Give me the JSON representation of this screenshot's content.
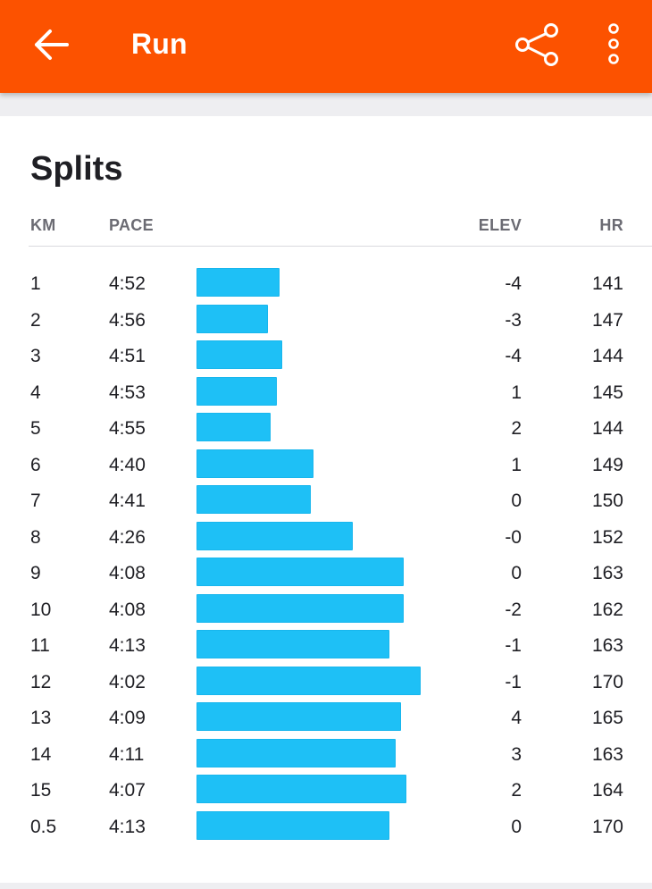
{
  "app_bar": {
    "title": "Run",
    "background": "#fc5200",
    "back_icon": "arrow-left-icon",
    "share_icon": "share-icon",
    "more_icon": "more-vertical-icon"
  },
  "splits": {
    "heading": "Splits",
    "bar_color": "#1ec0f6",
    "columns": {
      "km": "KM",
      "pace": "PACE",
      "elev": "ELEV",
      "hr": "HR"
    },
    "rows": [
      {
        "km": "1",
        "pace": "4:52",
        "elev": "-4",
        "hr": "141"
      },
      {
        "km": "2",
        "pace": "4:56",
        "elev": "-3",
        "hr": "147"
      },
      {
        "km": "3",
        "pace": "4:51",
        "elev": "-4",
        "hr": "144"
      },
      {
        "km": "4",
        "pace": "4:53",
        "elev": "1",
        "hr": "145"
      },
      {
        "km": "5",
        "pace": "4:55",
        "elev": "2",
        "hr": "144"
      },
      {
        "km": "6",
        "pace": "4:40",
        "elev": "1",
        "hr": "149"
      },
      {
        "km": "7",
        "pace": "4:41",
        "elev": "0",
        "hr": "150"
      },
      {
        "km": "8",
        "pace": "4:26",
        "elev": "-0",
        "hr": "152"
      },
      {
        "km": "9",
        "pace": "4:08",
        "elev": "0",
        "hr": "163"
      },
      {
        "km": "10",
        "pace": "4:08",
        "elev": "-2",
        "hr": "162"
      },
      {
        "km": "11",
        "pace": "4:13",
        "elev": "-1",
        "hr": "163"
      },
      {
        "km": "12",
        "pace": "4:02",
        "elev": "-1",
        "hr": "170"
      },
      {
        "km": "13",
        "pace": "4:09",
        "elev": "4",
        "hr": "165"
      },
      {
        "km": "14",
        "pace": "4:11",
        "elev": "3",
        "hr": "163"
      },
      {
        "km": "15",
        "pace": "4:07",
        "elev": "2",
        "hr": "164"
      },
      {
        "km": "0.5",
        "pace": "4:13",
        "elev": "0",
        "hr": "170"
      }
    ]
  }
}
